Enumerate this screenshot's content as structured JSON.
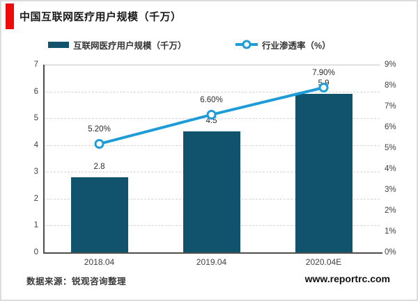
{
  "title": "中国互联网医疗用户规模（千万）",
  "legend": [
    {
      "label": "互联网医疗用户规模（千万）",
      "type": "bar"
    },
    {
      "label": "行业渗透率（%）",
      "type": "line"
    }
  ],
  "footer": {
    "source": "数据来源：锐观咨询整理",
    "website": "www.reportrc.com"
  },
  "colors": {
    "accent_red": "#ee0a0a",
    "bar": "#11536d",
    "line": "#1e9cd7"
  },
  "chart_data": {
    "type": "bar",
    "subtype": "bar+line-dual-axis",
    "title": "中国互联网医疗用户规模（千万）",
    "categories": [
      "2018.04",
      "2019.04",
      "2020.04E"
    ],
    "series": [
      {
        "name": "互联网医疗用户规模（千万）",
        "type": "bar",
        "axis": "left",
        "values": [
          2.8,
          4.5,
          5.9
        ],
        "labels": [
          "2.8",
          "4.5",
          "5.9"
        ],
        "color": "#11536d"
      },
      {
        "name": "行业渗透率（%）",
        "type": "line",
        "axis": "right",
        "values": [
          5.2,
          6.6,
          7.9
        ],
        "labels": [
          "5.20%",
          "6.60%",
          "7.90%"
        ],
        "color": "#1e9cd7"
      }
    ],
    "left_axis": {
      "min": 0,
      "max": 7,
      "step": 1,
      "ticks": [
        "0",
        "1",
        "2",
        "3",
        "4",
        "5",
        "6",
        "7"
      ]
    },
    "right_axis": {
      "min": 0,
      "max": 9,
      "step": 1,
      "ticks": [
        "0%",
        "1%",
        "2%",
        "3%",
        "4%",
        "5%",
        "6%",
        "7%",
        "8%",
        "9%"
      ]
    },
    "grid": "horizontal-dashed",
    "legend_position": "top"
  }
}
